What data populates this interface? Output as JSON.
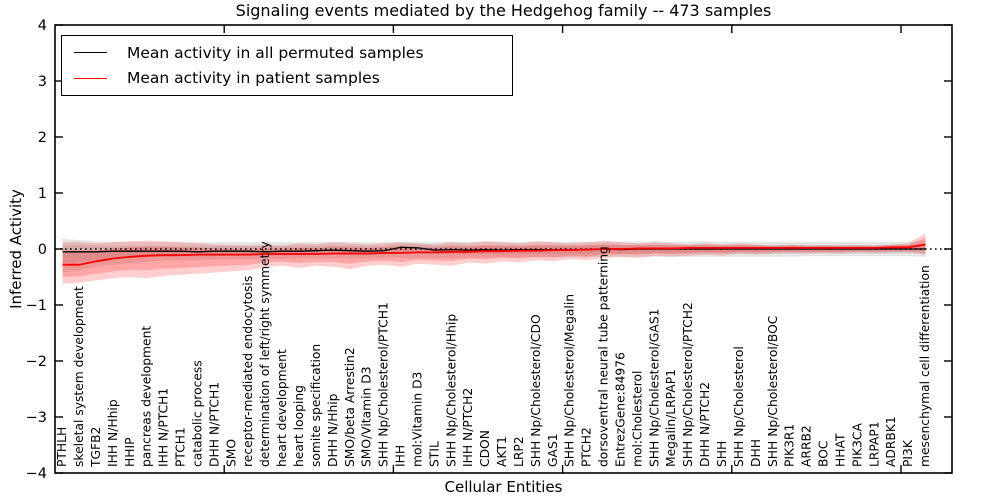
{
  "title": "Signaling events mediated by the Hedgehog family -- 473 samples",
  "axes": {
    "xlabel": "Cellular Entities",
    "ylabel": "Inferred Activity"
  },
  "legend": {
    "entries": [
      {
        "label": "Mean activity in all permuted samples",
        "color": "#000000"
      },
      {
        "label": "Mean activity in patient samples",
        "color": "#ff0000"
      }
    ]
  },
  "colors": {
    "permuted_line": "#000000",
    "patient_line": "#ff0000",
    "permuted_band": "rgba(130,130,130,0.22)",
    "patient_band": "rgba(255,30,30,0.22)",
    "zero_line": "#000000"
  },
  "chart_data": {
    "type": "line",
    "title": "Signaling events mediated by the Hedgehog family -- 473 samples",
    "xlabel": "Cellular Entities",
    "ylabel": "Inferred Activity",
    "ylim": [
      -4,
      4
    ],
    "y_tick_values": [
      -4,
      -3,
      -2,
      -1,
      0,
      1,
      2,
      3,
      4
    ],
    "y_tick_labels": [
      "−4",
      "−3",
      "−2",
      "−1",
      "0",
      "1",
      "2",
      "3",
      "4"
    ],
    "x_major_ticks": [
      10,
      20,
      30,
      40,
      50
    ],
    "grid": false,
    "legend_position": "upper left",
    "zero_baseline": 0,
    "categories": [
      "PTHLH",
      "skeletal system development",
      "TGFB2",
      "IHH N/Hhip",
      "HHIP",
      "pancreas development",
      "IHH N/PTCH1",
      "PTCH1",
      "catabolic process",
      "DHH N/PTCH1",
      "SMO",
      "receptor-mediated endocytosis",
      "determination of left/right symmetry",
      "heart development",
      "heart looping",
      "somite specification",
      "DHH N/Hhip",
      "SMO/beta Arrestin2",
      "SMO/Vitamin D3",
      "SHH Np/Cholesterol/PTCH1",
      "IHH",
      "mol:Vitamin D3",
      "STIL",
      "SHH Np/Cholesterol/Hhip",
      "IHH N/PTCH2",
      "CDON",
      "AKT1",
      "LRP2",
      "SHH Np/Cholesterol/CDO",
      "GAS1",
      "SHH Np/Cholesterol/Megalin",
      "PTCH2",
      "dorsoventral neural tube patterning",
      "EntrezGene:84976",
      "mol:Cholesterol",
      "SHH Np/Cholesterol/GAS1",
      "Megalin/LRPAP1",
      "SHH Np/Cholesterol/PTCH2",
      "DHH N/PTCH2",
      "SHH",
      "SHH Np/Cholesterol",
      "DHH",
      "SHH Np/Cholesterol/BOC",
      "PIK3R1",
      "ARRB2",
      "BOC",
      "HHAT",
      "PIK3CA",
      "LRPAP1",
      "ADRBK1",
      "PI3K",
      "mesenchymal cell differentiation"
    ],
    "series": [
      {
        "name": "Mean activity in all permuted samples",
        "color": "#000000",
        "values": [
          -0.05,
          -0.05,
          -0.05,
          -0.04,
          -0.04,
          -0.04,
          -0.04,
          -0.04,
          -0.05,
          -0.04,
          -0.04,
          -0.04,
          -0.05,
          -0.04,
          -0.04,
          -0.03,
          -0.02,
          -0.03,
          -0.04,
          -0.03,
          0.03,
          0.02,
          -0.02,
          -0.01,
          -0.02,
          -0.01,
          -0.02,
          -0.01,
          -0.01,
          -0.01,
          -0.01,
          -0.01,
          0.0,
          -0.01,
          0.0,
          0.0,
          0.0,
          0.0,
          0.0,
          0.0,
          0.0,
          0.0,
          0.0,
          0.0,
          0.0,
          0.0,
          0.0,
          0.0,
          0.0,
          0.0,
          0.0,
          0.0
        ]
      },
      {
        "name": "Mean activity in patient samples",
        "color": "#ff0000",
        "values": [
          -0.28,
          -0.28,
          -0.22,
          -0.17,
          -0.14,
          -0.12,
          -0.11,
          -0.11,
          -0.1,
          -0.1,
          -0.1,
          -0.1,
          -0.09,
          -0.09,
          -0.09,
          -0.09,
          -0.08,
          -0.08,
          -0.08,
          -0.07,
          -0.07,
          -0.06,
          -0.06,
          -0.05,
          -0.05,
          -0.04,
          -0.04,
          -0.03,
          -0.03,
          -0.02,
          -0.02,
          -0.01,
          0.0,
          0.0,
          0.01,
          0.01,
          0.01,
          0.02,
          0.02,
          0.02,
          0.02,
          0.02,
          0.02,
          0.02,
          0.02,
          0.02,
          0.02,
          0.02,
          0.02,
          0.03,
          0.03,
          0.08
        ]
      }
    ],
    "bands": [
      {
        "name": "permuted-band",
        "upper": [
          0.18,
          0.16,
          0.14,
          0.13,
          0.12,
          0.12,
          0.12,
          0.12,
          0.12,
          0.12,
          0.12,
          0.12,
          0.13,
          0.12,
          0.12,
          0.13,
          0.12,
          0.13,
          0.12,
          0.12,
          0.13,
          0.12,
          0.12,
          0.13,
          0.12,
          0.13,
          0.13,
          0.12,
          0.13,
          0.12,
          0.13,
          0.13,
          0.14,
          0.13,
          0.13,
          0.14,
          0.13,
          0.13,
          0.14,
          0.13,
          0.13,
          0.13,
          0.13,
          0.13,
          0.13,
          0.13,
          0.13,
          0.13,
          0.13,
          0.13,
          0.13,
          0.14
        ],
        "lower": [
          -0.42,
          -0.38,
          -0.32,
          -0.28,
          -0.25,
          -0.23,
          -0.21,
          -0.2,
          -0.2,
          -0.19,
          -0.19,
          -0.18,
          -0.18,
          -0.18,
          -0.17,
          -0.17,
          -0.17,
          -0.17,
          -0.17,
          -0.16,
          -0.16,
          -0.16,
          -0.16,
          -0.16,
          -0.15,
          -0.15,
          -0.15,
          -0.15,
          -0.15,
          -0.15,
          -0.15,
          -0.15,
          -0.14,
          -0.14,
          -0.14,
          -0.14,
          -0.14,
          -0.14,
          -0.14,
          -0.14,
          -0.14,
          -0.14,
          -0.14,
          -0.14,
          -0.13,
          -0.13,
          -0.13,
          -0.13,
          -0.13,
          -0.13,
          -0.13,
          -0.14
        ]
      },
      {
        "name": "patient-band",
        "upper": [
          0.12,
          0.12,
          0.1,
          0.12,
          0.14,
          0.15,
          0.14,
          0.12,
          0.1,
          0.08,
          0.07,
          0.06,
          0.08,
          0.06,
          0.1,
          0.08,
          0.12,
          0.1,
          0.08,
          0.1,
          0.12,
          0.1,
          0.08,
          0.12,
          0.1,
          0.14,
          0.12,
          0.1,
          0.14,
          0.12,
          0.1,
          0.12,
          0.14,
          0.12,
          0.1,
          0.12,
          0.1,
          0.08,
          0.1,
          0.08,
          0.1,
          0.08,
          0.06,
          0.08,
          0.06,
          0.07,
          0.06,
          0.07,
          0.06,
          0.08,
          0.1,
          0.28
        ],
        "lower": [
          -0.62,
          -0.6,
          -0.56,
          -0.52,
          -0.5,
          -0.52,
          -0.48,
          -0.46,
          -0.44,
          -0.42,
          -0.4,
          -0.38,
          -0.32,
          -0.3,
          -0.34,
          -0.3,
          -0.32,
          -0.36,
          -0.3,
          -0.28,
          -0.32,
          -0.26,
          -0.28,
          -0.3,
          -0.24,
          -0.26,
          -0.22,
          -0.24,
          -0.2,
          -0.22,
          -0.18,
          -0.2,
          -0.16,
          -0.14,
          -0.16,
          -0.12,
          -0.14,
          -0.12,
          -0.1,
          -0.12,
          -0.08,
          -0.1,
          -0.08,
          -0.07,
          -0.08,
          -0.07,
          -0.08,
          -0.06,
          -0.07,
          -0.06,
          -0.06,
          -0.1
        ]
      }
    ]
  }
}
